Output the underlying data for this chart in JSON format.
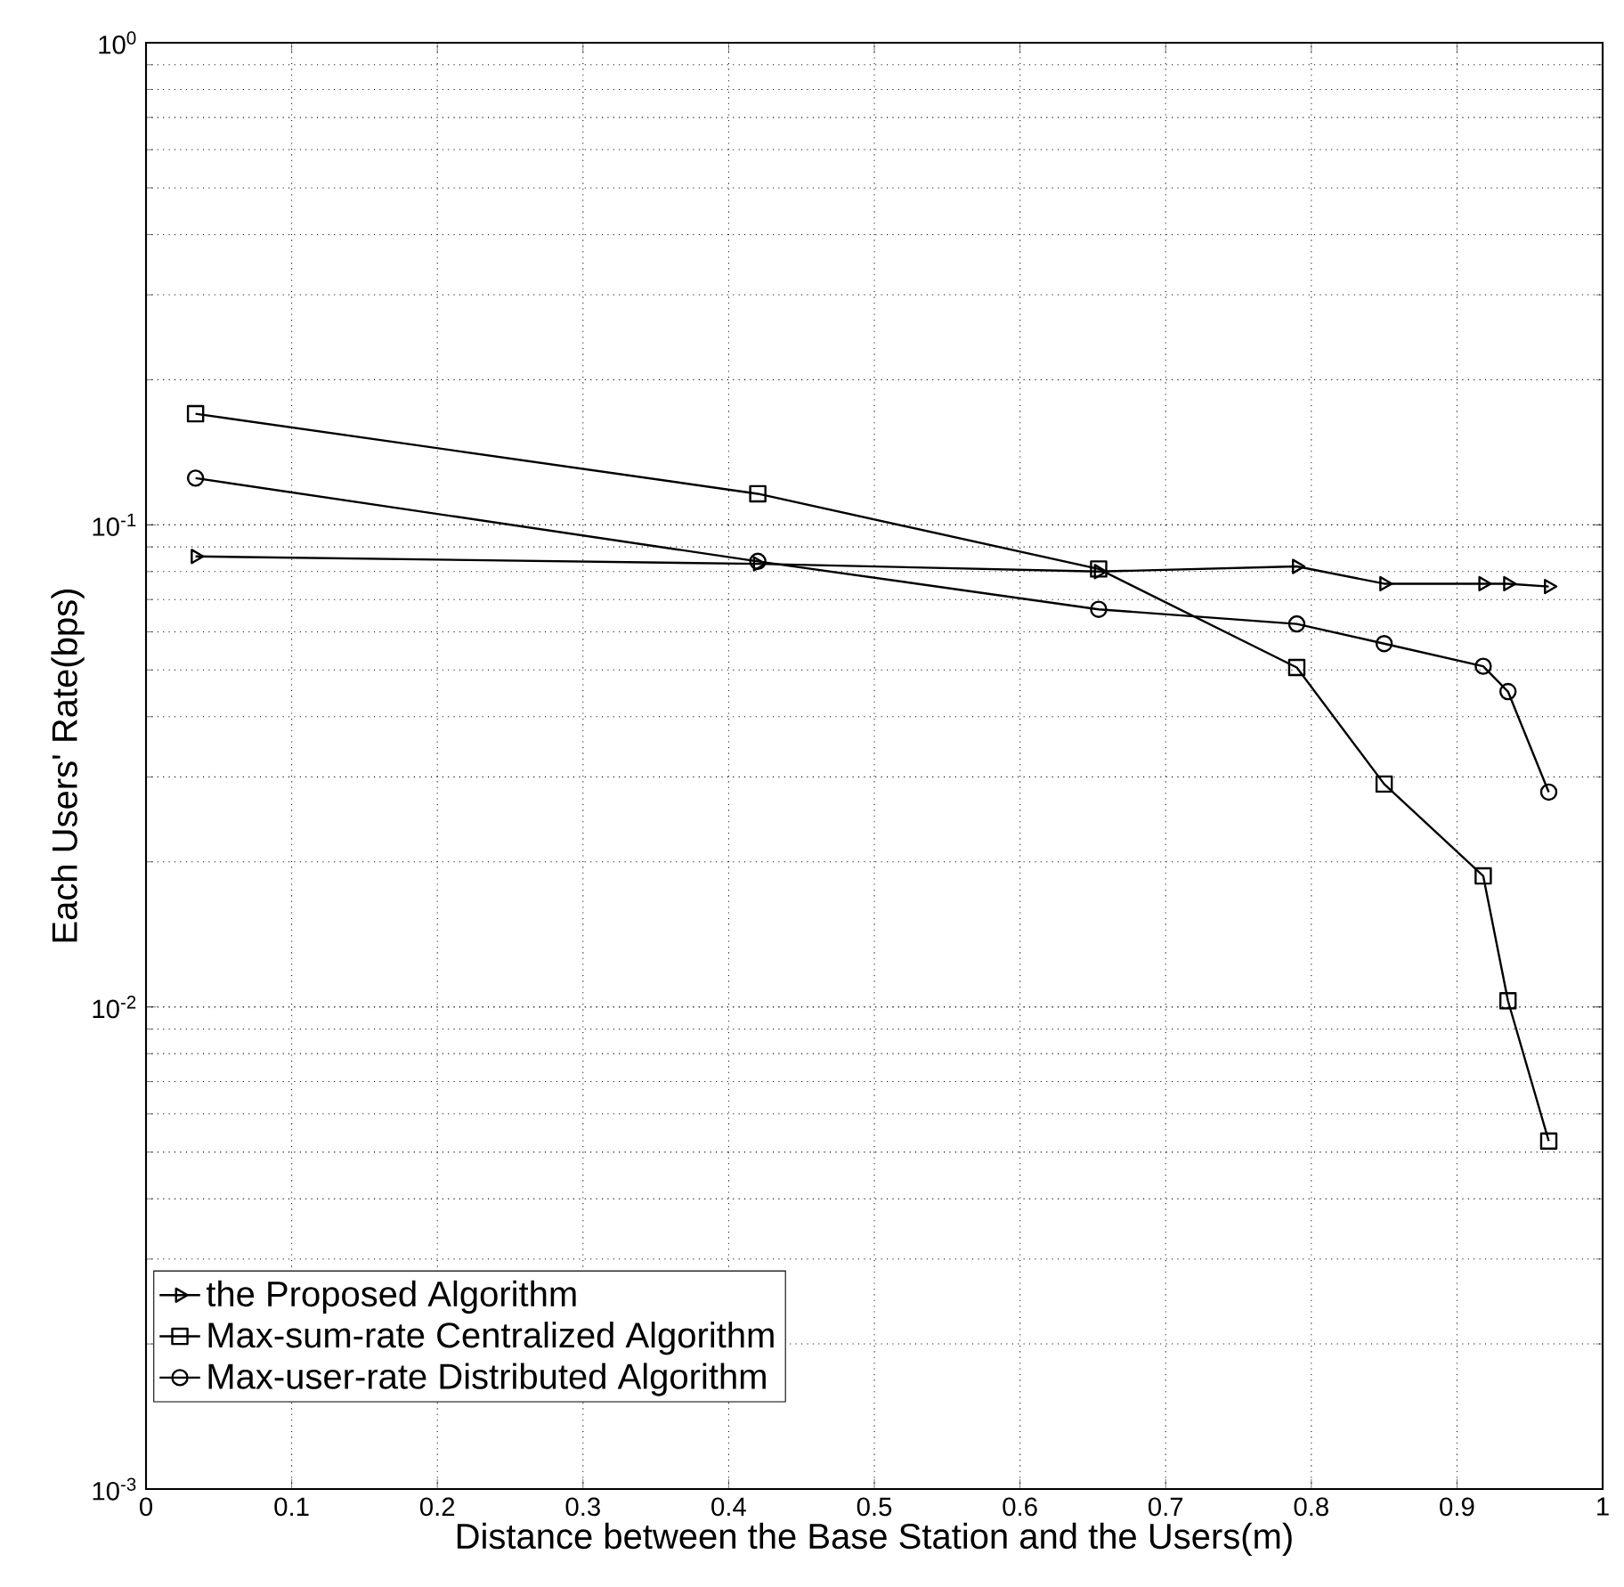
{
  "chart_data": {
    "type": "line",
    "xlabel": "Distance between the Base Station and the Users(m)",
    "ylabel": "Each Users' Rate(bps)",
    "log": "y",
    "grid": true,
    "legend": "bottom left",
    "line_style": "solid",
    "xlim": [
      0,
      1
    ],
    "xticks": [
      0,
      0.1,
      0.2,
      0.3,
      0.4,
      0.5,
      0.6,
      0.7,
      0.8,
      0.9,
      1
    ],
    "ylim": [
      0.001,
      1
    ],
    "yticks": [
      {
        "value": 0.001,
        "label": "10$^{-3}$"
      },
      {
        "value": 0.01,
        "label": "10$^{-2}$"
      },
      {
        "value": 0.1,
        "label": "10$^{-1}$"
      },
      {
        "value": 1,
        "label": "10$^{0}$"
      }
    ],
    "series": [
      {
        "name": "the Proposed Algorithm",
        "color": "#000000",
        "marker": "triangle",
        "x": [
          0.034,
          0.42,
          0.654,
          0.79,
          0.85,
          0.918,
          0.935,
          0.963
        ],
        "values": [
          0.086,
          0.083,
          0.08,
          0.082,
          0.0755,
          0.0755,
          0.0755,
          0.0745
        ]
      },
      {
        "name": "Max-sum-rate Centralized Algorithm",
        "color": "#000000",
        "marker": "square",
        "x": [
          0.034,
          0.42,
          0.654,
          0.79,
          0.85,
          0.918,
          0.935,
          0.963
        ],
        "values": [
          0.17,
          0.116,
          0.081,
          0.0506,
          0.029,
          0.0187,
          0.0103,
          0.00527
        ]
      },
      {
        "name": "Max-user-rate Distributed Algorithm",
        "color": "#000000",
        "marker": "circle",
        "x": [
          0.034,
          0.42,
          0.654,
          0.79,
          0.85,
          0.918,
          0.935,
          0.963
        ],
        "values": [
          0.125,
          0.084,
          0.0668,
          0.0623,
          0.0567,
          0.0509,
          0.0451,
          0.0279
        ]
      }
    ]
  }
}
